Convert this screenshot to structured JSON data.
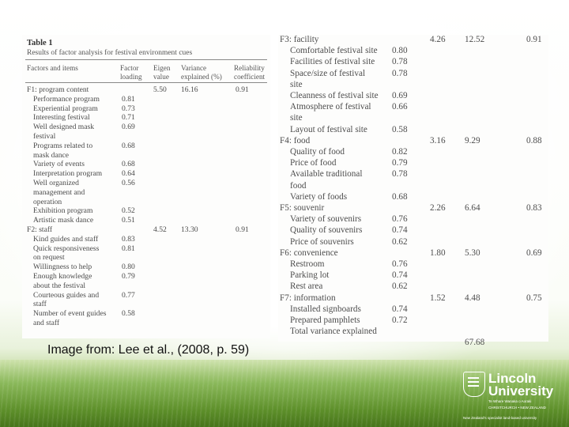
{
  "caption": "Image from: Lee et al., (2008, p. 59)",
  "table_left": {
    "title": "Table 1",
    "subtitle": "Results of factor analysis for festival environment cues",
    "headers": {
      "items": "Factors and items",
      "loading_1": "Factor",
      "loading_2": "loading",
      "eigen_1": "Eigen",
      "eigen_2": "value",
      "var_1": "Variance",
      "var_2": "explained (%)",
      "rel_1": "Reliability",
      "rel_2": "coefficient"
    },
    "rows": [
      {
        "text": "F1: program content",
        "indent": false,
        "eigen": "5.50",
        "variance": "16.16",
        "reliability": "0.91"
      },
      {
        "text": "Performance program",
        "indent": true,
        "loading": "0.81"
      },
      {
        "text": "Experiential program",
        "indent": true,
        "loading": "0.73"
      },
      {
        "text": "Interesting festival",
        "indent": true,
        "loading": "0.71"
      },
      {
        "text": "Well designed mask",
        "indent": true,
        "loading": "0.69"
      },
      {
        "text": "festival",
        "indent": true
      },
      {
        "text": "Programs related to",
        "indent": true,
        "loading": "0.68"
      },
      {
        "text": "mask dance",
        "indent": true
      },
      {
        "text": "Variety of events",
        "indent": true,
        "loading": "0.68"
      },
      {
        "text": "Interpretation program",
        "indent": true,
        "loading": "0.64"
      },
      {
        "text": "Well organized",
        "indent": true,
        "loading": "0.56"
      },
      {
        "text": "management and",
        "indent": true
      },
      {
        "text": "operation",
        "indent": true
      },
      {
        "text": "Exhibition program",
        "indent": true,
        "loading": "0.52"
      },
      {
        "text": "Artistic mask dance",
        "indent": true,
        "loading": "0.51"
      },
      {
        "text": "F2: staff",
        "indent": false,
        "eigen": "4.52",
        "variance": "13.30",
        "reliability": "0.91"
      },
      {
        "text": "Kind guides and staff",
        "indent": true,
        "loading": "0.83"
      },
      {
        "text": "Quick responsiveness",
        "indent": true,
        "loading": "0.81"
      },
      {
        "text": "on request",
        "indent": true
      },
      {
        "text": "Willingness to help",
        "indent": true,
        "loading": "0.80"
      },
      {
        "text": "Enough knowledge",
        "indent": true,
        "loading": "0.79"
      },
      {
        "text": "about the festival",
        "indent": true
      },
      {
        "text": "Courteous guides and",
        "indent": true,
        "loading": "0.77"
      },
      {
        "text": "staff",
        "indent": true
      },
      {
        "text": "Number of event guides",
        "indent": true,
        "loading": "0.58"
      },
      {
        "text": "and staff",
        "indent": true
      }
    ]
  },
  "table_right": {
    "rows": [
      {
        "text": "F3: facility",
        "indent": false,
        "eigen": "4.26",
        "variance": "12.52",
        "reliability": "0.91"
      },
      {
        "text": "Comfortable festival site",
        "indent": true,
        "loading": "0.80"
      },
      {
        "text": "Facilities of festival site",
        "indent": true,
        "loading": "0.78"
      },
      {
        "text": "Space/size of festival",
        "indent": true,
        "loading": "0.78"
      },
      {
        "text": "site",
        "indent": true
      },
      {
        "text": "Cleanness of festival site",
        "indent": true,
        "loading": "0.69"
      },
      {
        "text": "Atmosphere of festival",
        "indent": true,
        "loading": "0.66"
      },
      {
        "text": "site",
        "indent": true
      },
      {
        "text": "Layout of festival site",
        "indent": true,
        "loading": "0.58"
      },
      {
        "text": "F4: food",
        "indent": false,
        "eigen": "3.16",
        "variance": "9.29",
        "reliability": "0.88"
      },
      {
        "text": "Quality of food",
        "indent": true,
        "loading": "0.82"
      },
      {
        "text": "Price of food",
        "indent": true,
        "loading": "0.79"
      },
      {
        "text": "Available traditional",
        "indent": true,
        "loading": "0.78"
      },
      {
        "text": "food",
        "indent": true
      },
      {
        "text": "Variety of foods",
        "indent": true,
        "loading": "0.68"
      },
      {
        "text": "F5: souvenir",
        "indent": false,
        "eigen": "2.26",
        "variance": "6.64",
        "reliability": "0.83"
      },
      {
        "text": "Variety of souvenirs",
        "indent": true,
        "loading": "0.76"
      },
      {
        "text": "Quality of souvenirs",
        "indent": true,
        "loading": "0.74"
      },
      {
        "text": "Price of souvenirs",
        "indent": true,
        "loading": "0.62"
      },
      {
        "text": "F6: convenience",
        "indent": false,
        "eigen": "1.80",
        "variance": "5.30",
        "reliability": "0.69"
      },
      {
        "text": "Restroom",
        "indent": true,
        "loading": "0.76"
      },
      {
        "text": "Parking lot",
        "indent": true,
        "loading": "0.74"
      },
      {
        "text": "Rest area",
        "indent": true,
        "loading": "0.62"
      },
      {
        "text": "F7: information",
        "indent": false,
        "eigen": "1.52",
        "variance": "4.48",
        "reliability": "0.75"
      },
      {
        "text": "Installed signboards",
        "indent": true,
        "loading": "0.74"
      },
      {
        "text": "Prepared pamphlets",
        "indent": true,
        "loading": "0.72"
      },
      {
        "text": "Total variance explained",
        "indent": true
      },
      {
        "text": "",
        "indent": true,
        "variance": "67.68"
      }
    ]
  },
  "logo": {
    "name_line1": "Lincoln",
    "name_line2": "University",
    "maori_name": "Te Whare Wanaka o Aoraki",
    "location": "CHRISTCHURCH • NEW ZEALAND",
    "tagline": "New Zealand's specialist land-based university"
  }
}
